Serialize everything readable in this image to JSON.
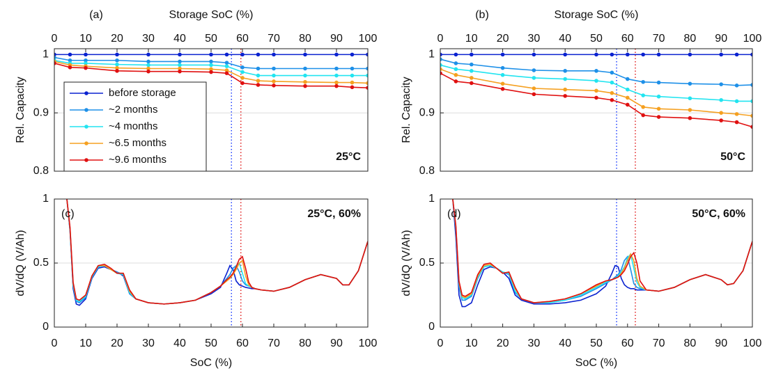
{
  "chart_data": [
    {
      "type": "line",
      "panel_label": "(a)",
      "annotation": "25°C",
      "xlabel": "Storage SoC (%)",
      "ylabel": "Rel. Capacity",
      "xaxis": "top",
      "markers": true,
      "grid": true,
      "legend": "lower-left",
      "x": [
        0,
        5,
        10,
        20,
        30,
        40,
        50,
        55,
        60,
        65,
        70,
        80,
        90,
        95,
        100
      ],
      "xlim": [
        0,
        100
      ],
      "ylim": [
        0.8,
        1.01
      ],
      "xticks": [
        0,
        10,
        20,
        30,
        40,
        50,
        60,
        70,
        80,
        90,
        100
      ],
      "yticks": [
        0.8,
        0.9,
        1
      ],
      "vlines": [
        {
          "x": 56.5,
          "color": "#2040ff"
        },
        {
          "x": 59.5,
          "color": "#e02020"
        }
      ],
      "series": [
        {
          "name": "before storage",
          "color": "#0a22d0",
          "values": [
            1,
            1,
            1,
            1,
            1,
            1,
            1,
            1,
            1,
            1,
            1,
            1,
            1,
            1,
            1
          ]
        },
        {
          "name": "~2 months",
          "color": "#1e90e8",
          "values": [
            0.995,
            0.99,
            0.99,
            0.99,
            0.988,
            0.988,
            0.988,
            0.986,
            0.978,
            0.976,
            0.976,
            0.976,
            0.976,
            0.976,
            0.976
          ]
        },
        {
          "name": "~4 months",
          "color": "#22e4f0",
          "values": [
            0.99,
            0.985,
            0.985,
            0.983,
            0.982,
            0.982,
            0.982,
            0.98,
            0.97,
            0.964,
            0.964,
            0.964,
            0.964,
            0.964,
            0.964
          ]
        },
        {
          "name": "~6.5 months",
          "color": "#f5a020",
          "values": [
            0.988,
            0.982,
            0.98,
            0.977,
            0.976,
            0.976,
            0.975,
            0.973,
            0.96,
            0.955,
            0.954,
            0.953,
            0.952,
            0.952,
            0.951
          ]
        },
        {
          "name": "~9.6 months",
          "color": "#e01010",
          "values": [
            0.985,
            0.978,
            0.977,
            0.972,
            0.971,
            0.971,
            0.97,
            0.968,
            0.951,
            0.948,
            0.947,
            0.946,
            0.946,
            0.944,
            0.943
          ]
        }
      ]
    },
    {
      "type": "line",
      "panel_label": "(b)",
      "annotation": "50°C",
      "xlabel": "Storage SoC (%)",
      "ylabel": "Rel. Capacity",
      "xaxis": "top",
      "markers": true,
      "grid": true,
      "x": [
        0,
        5,
        10,
        20,
        30,
        40,
        50,
        55,
        60,
        65,
        70,
        80,
        90,
        95,
        100
      ],
      "xlim": [
        0,
        100
      ],
      "ylim": [
        0.8,
        1.01
      ],
      "xticks": [
        0,
        10,
        20,
        30,
        40,
        50,
        60,
        70,
        80,
        90,
        100
      ],
      "yticks": [
        0.8,
        0.9,
        1
      ],
      "vlines": [
        {
          "x": 56.5,
          "color": "#2040ff"
        },
        {
          "x": 62.5,
          "color": "#e02020"
        }
      ],
      "series": [
        {
          "color": "#0a22d0",
          "values": [
            1,
            1,
            1,
            1,
            1,
            1,
            1,
            1,
            1,
            1,
            1,
            1,
            1,
            1,
            1
          ]
        },
        {
          "color": "#1e90e8",
          "values": [
            0.992,
            0.985,
            0.983,
            0.977,
            0.973,
            0.972,
            0.972,
            0.969,
            0.958,
            0.953,
            0.952,
            0.95,
            0.949,
            0.947,
            0.948
          ]
        },
        {
          "color": "#22e4f0",
          "values": [
            0.982,
            0.975,
            0.972,
            0.965,
            0.96,
            0.958,
            0.955,
            0.952,
            0.94,
            0.93,
            0.928,
            0.925,
            0.922,
            0.92,
            0.92
          ]
        },
        {
          "color": "#f5a020",
          "values": [
            0.975,
            0.965,
            0.96,
            0.95,
            0.942,
            0.94,
            0.938,
            0.934,
            0.926,
            0.91,
            0.907,
            0.905,
            0.9,
            0.898,
            0.895
          ]
        },
        {
          "color": "#e01010",
          "values": [
            0.968,
            0.954,
            0.951,
            0.941,
            0.932,
            0.929,
            0.926,
            0.922,
            0.914,
            0.896,
            0.893,
            0.891,
            0.887,
            0.884,
            0.876
          ]
        }
      ]
    },
    {
      "type": "line",
      "panel_label": "(c)",
      "annotation": "25°C, 60%",
      "xlabel": "SoC (%)",
      "ylabel": "dV/dQ (V/Ah)",
      "xaxis": "bottom",
      "markers": false,
      "grid": true,
      "x": [
        4,
        5,
        6,
        7,
        8,
        10,
        12,
        14,
        16,
        18,
        20,
        22,
        24,
        26,
        30,
        35,
        40,
        45,
        50,
        53,
        55,
        56,
        57,
        58,
        59,
        60,
        61,
        62,
        63,
        64,
        66,
        70,
        75,
        80,
        85,
        90,
        92,
        94,
        97,
        100
      ],
      "xlim": [
        0,
        100
      ],
      "ylim": [
        0,
        1
      ],
      "xticks": [
        0,
        10,
        20,
        30,
        40,
        50,
        60,
        70,
        80,
        90,
        100
      ],
      "yticks": [
        0,
        0.5,
        1
      ],
      "vlines": [
        {
          "x": 56.5,
          "color": "#2040ff"
        },
        {
          "x": 59.5,
          "color": "#e02020"
        }
      ],
      "series": [
        {
          "color": "#0a22d0",
          "values": [
            1,
            0.75,
            0.3,
            0.18,
            0.17,
            0.22,
            0.38,
            0.46,
            0.47,
            0.45,
            0.43,
            0.4,
            0.26,
            0.22,
            0.19,
            0.18,
            0.19,
            0.21,
            0.26,
            0.31,
            0.42,
            0.48,
            0.45,
            0.36,
            0.33,
            0.32,
            0.31,
            0.305,
            0.3,
            0.3,
            0.29,
            0.28,
            0.31,
            0.37,
            0.41,
            0.38,
            0.33,
            0.33,
            0.44,
            0.67
          ]
        },
        {
          "color": "#1e90e8",
          "values": [
            1,
            0.76,
            0.32,
            0.2,
            0.19,
            0.23,
            0.39,
            0.47,
            0.48,
            0.45,
            0.43,
            0.41,
            0.26,
            0.22,
            0.19,
            0.18,
            0.19,
            0.21,
            0.27,
            0.32,
            0.38,
            0.41,
            0.46,
            0.48,
            0.43,
            0.36,
            0.33,
            0.32,
            0.31,
            0.3,
            0.29,
            0.28,
            0.31,
            0.37,
            0.41,
            0.38,
            0.33,
            0.33,
            0.44,
            0.67
          ]
        },
        {
          "color": "#22e4f0",
          "values": [
            1,
            0.77,
            0.33,
            0.21,
            0.2,
            0.24,
            0.39,
            0.47,
            0.48,
            0.45,
            0.42,
            0.41,
            0.27,
            0.22,
            0.19,
            0.18,
            0.19,
            0.21,
            0.27,
            0.32,
            0.37,
            0.39,
            0.42,
            0.48,
            0.5,
            0.42,
            0.34,
            0.32,
            0.31,
            0.3,
            0.29,
            0.28,
            0.31,
            0.37,
            0.41,
            0.38,
            0.33,
            0.33,
            0.44,
            0.67
          ]
        },
        {
          "color": "#f5a020",
          "values": [
            1,
            0.77,
            0.34,
            0.22,
            0.21,
            0.25,
            0.4,
            0.48,
            0.48,
            0.45,
            0.42,
            0.42,
            0.28,
            0.22,
            0.19,
            0.18,
            0.19,
            0.21,
            0.27,
            0.32,
            0.36,
            0.38,
            0.41,
            0.45,
            0.5,
            0.52,
            0.4,
            0.33,
            0.31,
            0.3,
            0.29,
            0.28,
            0.31,
            0.37,
            0.41,
            0.38,
            0.33,
            0.33,
            0.44,
            0.67
          ]
        },
        {
          "color": "#e01010",
          "values": [
            1,
            0.78,
            0.35,
            0.22,
            0.21,
            0.25,
            0.4,
            0.48,
            0.49,
            0.46,
            0.42,
            0.42,
            0.29,
            0.22,
            0.19,
            0.18,
            0.19,
            0.21,
            0.27,
            0.32,
            0.37,
            0.39,
            0.42,
            0.47,
            0.53,
            0.55,
            0.46,
            0.35,
            0.31,
            0.3,
            0.29,
            0.28,
            0.31,
            0.37,
            0.41,
            0.38,
            0.33,
            0.33,
            0.44,
            0.67
          ]
        }
      ]
    },
    {
      "type": "line",
      "panel_label": "(d)",
      "annotation": "50°C, 60%",
      "xlabel": "SoC (%)",
      "ylabel": "dV/dQ (V/Ah)",
      "xaxis": "bottom",
      "markers": false,
      "grid": true,
      "x": [
        4,
        5,
        6,
        7,
        8,
        10,
        12,
        14,
        16,
        18,
        20,
        22,
        24,
        26,
        30,
        35,
        40,
        45,
        50,
        53,
        55,
        56,
        57,
        58,
        59,
        60,
        61,
        62,
        63,
        64,
        66,
        70,
        75,
        80,
        85,
        90,
        92,
        94,
        97,
        100
      ],
      "xlim": [
        0,
        100
      ],
      "ylim": [
        0,
        1
      ],
      "xticks": [
        0,
        10,
        20,
        30,
        40,
        50,
        60,
        70,
        80,
        90,
        100
      ],
      "yticks": [
        0,
        0.5,
        1
      ],
      "vlines": [
        {
          "x": 56.5,
          "color": "#2040ff"
        },
        {
          "x": 62.5,
          "color": "#e02020"
        }
      ],
      "series": [
        {
          "color": "#0a22d0",
          "values": [
            1,
            0.7,
            0.25,
            0.16,
            0.16,
            0.19,
            0.33,
            0.45,
            0.47,
            0.46,
            0.43,
            0.38,
            0.25,
            0.21,
            0.18,
            0.18,
            0.19,
            0.21,
            0.26,
            0.32,
            0.42,
            0.48,
            0.47,
            0.38,
            0.33,
            0.31,
            0.3,
            0.3,
            0.29,
            0.29,
            0.29,
            0.28,
            0.31,
            0.37,
            0.41,
            0.37,
            0.33,
            0.34,
            0.44,
            0.67
          ]
        },
        {
          "color": "#1e90e8",
          "values": [
            1,
            0.76,
            0.32,
            0.21,
            0.21,
            0.24,
            0.38,
            0.47,
            0.48,
            0.46,
            0.43,
            0.41,
            0.27,
            0.22,
            0.19,
            0.19,
            0.21,
            0.24,
            0.3,
            0.34,
            0.37,
            0.39,
            0.41,
            0.45,
            0.52,
            0.55,
            0.45,
            0.34,
            0.31,
            0.3,
            0.29,
            0.28,
            0.31,
            0.37,
            0.41,
            0.37,
            0.33,
            0.34,
            0.44,
            0.67
          ]
        },
        {
          "color": "#22e4f0",
          "values": [
            1,
            0.77,
            0.34,
            0.23,
            0.22,
            0.25,
            0.39,
            0.47,
            0.48,
            0.46,
            0.43,
            0.42,
            0.28,
            0.22,
            0.19,
            0.19,
            0.21,
            0.25,
            0.31,
            0.35,
            0.37,
            0.38,
            0.4,
            0.43,
            0.47,
            0.54,
            0.57,
            0.46,
            0.35,
            0.31,
            0.29,
            0.28,
            0.31,
            0.37,
            0.41,
            0.37,
            0.33,
            0.34,
            0.44,
            0.67
          ]
        },
        {
          "color": "#f5a020",
          "values": [
            1,
            0.78,
            0.35,
            0.24,
            0.23,
            0.26,
            0.4,
            0.48,
            0.49,
            0.46,
            0.42,
            0.43,
            0.3,
            0.22,
            0.19,
            0.2,
            0.22,
            0.26,
            0.32,
            0.36,
            0.37,
            0.38,
            0.39,
            0.42,
            0.46,
            0.52,
            0.57,
            0.52,
            0.38,
            0.32,
            0.29,
            0.28,
            0.31,
            0.37,
            0.41,
            0.37,
            0.33,
            0.34,
            0.44,
            0.67
          ]
        },
        {
          "color": "#e01010",
          "values": [
            1,
            0.79,
            0.36,
            0.25,
            0.24,
            0.27,
            0.41,
            0.49,
            0.5,
            0.46,
            0.42,
            0.43,
            0.31,
            0.22,
            0.19,
            0.2,
            0.22,
            0.26,
            0.33,
            0.36,
            0.37,
            0.38,
            0.39,
            0.41,
            0.44,
            0.49,
            0.55,
            0.58,
            0.5,
            0.36,
            0.29,
            0.28,
            0.31,
            0.37,
            0.41,
            0.37,
            0.33,
            0.34,
            0.44,
            0.67
          ]
        }
      ]
    }
  ]
}
